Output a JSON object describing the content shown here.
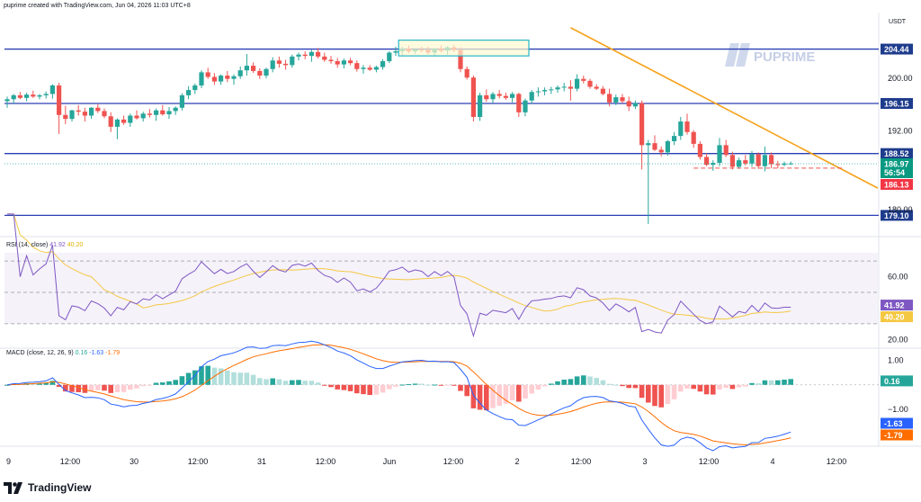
{
  "header": {
    "caption": "puprime created with TradingView.com, Jun 04, 2026 11:03 UTC+8"
  },
  "brand": {
    "name": "TradingView",
    "watermark": "PUPRIME"
  },
  "colors": {
    "up": "#26a69a",
    "down": "#ef5350",
    "level": "#2a3fb5",
    "trend": "#f7a21b",
    "rsi": "#7e57c2",
    "rsi_ma": "#f5c842",
    "macd": "#2962ff",
    "signal": "#ff6d00",
    "hist_up": "#26a69a",
    "hist_up_fade": "#b2dfdb",
    "hist_down": "#ef5350",
    "hist_down_fade": "#ffcdd2"
  },
  "chart_data": [
    {
      "type": "candlestick",
      "name": "price",
      "ylabel": "USDT",
      "ylim": [
        176,
        210
      ],
      "y_ticks": [
        180.0,
        192.0,
        200.0
      ],
      "levels": [
        204.44,
        196.15,
        188.52,
        179.1
      ],
      "level_labels": [
        "204.44",
        "196.15",
        "188.52",
        "179.10"
      ],
      "current": {
        "price": "186.97",
        "countdown": "56:54"
      },
      "bid": "186.13",
      "x_ticks": [
        "9",
        "12:00",
        "30",
        "12:00",
        "31",
        "12:00",
        "Jun",
        "12:00",
        "2",
        "12:00",
        "3",
        "12:00",
        "4",
        "12:00"
      ],
      "trendline": [
        {
          "i": 87,
          "v": 207.7
        },
        {
          "i": 126,
          "v": 187.6
        }
      ],
      "dashed_support": 186.3,
      "candles": [
        [
          196.5,
          197.2,
          195.5,
          196.8
        ],
        [
          196.8,
          197.6,
          196.1,
          197.4
        ],
        [
          197.4,
          197.9,
          196.8,
          197.0
        ],
        [
          197.0,
          197.8,
          196.5,
          197.5
        ],
        [
          197.5,
          198.1,
          197.0,
          197.2
        ],
        [
          197.2,
          197.6,
          196.8,
          197.4
        ],
        [
          197.4,
          198.0,
          196.9,
          197.6
        ],
        [
          197.6,
          199.1,
          196.9,
          198.9
        ],
        [
          198.9,
          199.3,
          191.5,
          194.4
        ],
        [
          194.4,
          195.8,
          193.0,
          193.8
        ],
        [
          193.8,
          195.2,
          193.4,
          195.1
        ],
        [
          195.1,
          195.9,
          194.3,
          194.9
        ],
        [
          194.9,
          195.5,
          193.4,
          194.3
        ],
        [
          194.3,
          195.6,
          193.8,
          195.5
        ],
        [
          195.5,
          196.0,
          194.7,
          195.0
        ],
        [
          195.0,
          195.4,
          193.9,
          194.2
        ],
        [
          194.2,
          194.8,
          191.8,
          192.6
        ],
        [
          192.6,
          193.9,
          190.7,
          193.7
        ],
        [
          193.7,
          194.3,
          192.9,
          193.2
        ],
        [
          193.2,
          194.6,
          192.6,
          194.3
        ],
        [
          194.3,
          195.1,
          193.7,
          193.9
        ],
        [
          193.9,
          194.9,
          193.4,
          194.6
        ],
        [
          194.6,
          195.3,
          194.0,
          194.4
        ],
        [
          194.4,
          195.4,
          193.5,
          195.1
        ],
        [
          195.1,
          195.9,
          194.3,
          194.5
        ],
        [
          194.5,
          195.6,
          193.8,
          195.0
        ],
        [
          195.0,
          195.7,
          194.4,
          195.5
        ],
        [
          195.5,
          197.7,
          195.1,
          197.4
        ],
        [
          197.4,
          198.8,
          196.8,
          198.2
        ],
        [
          198.2,
          199.2,
          197.6,
          198.9
        ],
        [
          198.9,
          201.2,
          198.5,
          200.9
        ],
        [
          200.9,
          201.6,
          199.9,
          200.2
        ],
        [
          200.2,
          200.8,
          199.0,
          199.5
        ],
        [
          199.5,
          200.6,
          199.0,
          200.4
        ],
        [
          200.4,
          201.1,
          199.4,
          199.9
        ],
        [
          199.9,
          200.6,
          199.0,
          200.3
        ],
        [
          200.3,
          201.8,
          199.9,
          201.2
        ],
        [
          201.2,
          203.7,
          200.4,
          201.9
        ],
        [
          201.9,
          202.4,
          200.8,
          201.1
        ],
        [
          201.1,
          201.5,
          199.9,
          200.4
        ],
        [
          200.4,
          201.6,
          200.0,
          201.4
        ],
        [
          201.4,
          203.2,
          200.9,
          202.7
        ],
        [
          202.7,
          203.3,
          201.6,
          202.2
        ],
        [
          202.2,
          202.8,
          201.3,
          202.0
        ],
        [
          202.0,
          203.6,
          201.6,
          203.3
        ],
        [
          203.3,
          203.9,
          202.7,
          203.6
        ],
        [
          203.6,
          204.1,
          202.9,
          203.4
        ],
        [
          203.4,
          204.3,
          202.5,
          204.0
        ],
        [
          204.0,
          204.6,
          203.0,
          203.3
        ],
        [
          203.3,
          203.9,
          202.5,
          202.8
        ],
        [
          202.8,
          203.4,
          202.2,
          202.6
        ],
        [
          202.6,
          203.1,
          201.6,
          202.1
        ],
        [
          202.1,
          203.0,
          201.5,
          202.7
        ],
        [
          202.7,
          203.1,
          202.0,
          202.3
        ],
        [
          202.3,
          202.7,
          201.0,
          201.4
        ],
        [
          201.4,
          202.0,
          200.7,
          201.6
        ],
        [
          201.6,
          202.0,
          201.1,
          201.3
        ],
        [
          201.3,
          201.9,
          200.9,
          201.7
        ],
        [
          201.7,
          202.9,
          201.3,
          202.6
        ],
        [
          202.6,
          204.1,
          202.3,
          203.9
        ],
        [
          203.9,
          204.8,
          203.4,
          204.1
        ],
        [
          204.1,
          204.8,
          203.5,
          204.5
        ],
        [
          204.5,
          205.0,
          203.8,
          204.1
        ],
        [
          204.1,
          204.6,
          203.7,
          204.4
        ],
        [
          204.4,
          204.8,
          203.9,
          204.3
        ],
        [
          204.3,
          204.8,
          203.6,
          203.9
        ],
        [
          203.9,
          204.6,
          203.4,
          204.5
        ],
        [
          204.5,
          205.0,
          203.9,
          204.2
        ],
        [
          204.2,
          204.9,
          203.6,
          204.7
        ],
        [
          204.7,
          205.1,
          204.0,
          204.3
        ],
        [
          204.3,
          204.7,
          200.9,
          201.4
        ],
        [
          201.4,
          201.8,
          199.8,
          200.1
        ],
        [
          200.1,
          200.4,
          193.4,
          194.1
        ],
        [
          194.1,
          197.8,
          193.5,
          197.4
        ],
        [
          197.4,
          198.3,
          196.4,
          196.8
        ],
        [
          196.8,
          197.9,
          196.2,
          197.6
        ],
        [
          197.6,
          198.2,
          196.9,
          197.3
        ],
        [
          197.3,
          197.8,
          196.7,
          197.0
        ],
        [
          197.0,
          197.9,
          196.3,
          197.6
        ],
        [
          197.6,
          197.8,
          194.1,
          194.8
        ],
        [
          194.8,
          196.9,
          194.2,
          196.6
        ],
        [
          196.6,
          198.2,
          196.1,
          197.9
        ],
        [
          197.9,
          198.6,
          197.2,
          198.0
        ],
        [
          198.0,
          198.6,
          197.4,
          198.2
        ],
        [
          198.2,
          198.7,
          197.6,
          198.3
        ],
        [
          198.3,
          198.9,
          197.8,
          198.6
        ],
        [
          198.6,
          199.3,
          198.0,
          198.7
        ],
        [
          198.7,
          199.7,
          196.6,
          198.4
        ],
        [
          198.4,
          200.6,
          198.0,
          199.9
        ],
        [
          199.9,
          200.4,
          199.2,
          199.6
        ],
        [
          199.6,
          199.9,
          198.4,
          198.7
        ],
        [
          198.7,
          199.1,
          198.2,
          198.4
        ],
        [
          198.4,
          198.8,
          197.4,
          197.6
        ],
        [
          197.6,
          198.4,
          195.7,
          196.3
        ],
        [
          196.3,
          197.5,
          195.9,
          197.1
        ],
        [
          197.1,
          197.6,
          196.2,
          196.5
        ],
        [
          196.5,
          197.2,
          195.0,
          195.7
        ],
        [
          195.7,
          196.6,
          195.3,
          196.2
        ],
        [
          196.2,
          196.6,
          186.1,
          189.8
        ],
        [
          189.8,
          190.6,
          177.8,
          190.1
        ],
        [
          190.1,
          191.3,
          188.9,
          189.1
        ],
        [
          189.1,
          189.6,
          188.1,
          188.7
        ],
        [
          188.7,
          190.6,
          188.2,
          190.4
        ],
        [
          190.4,
          191.8,
          189.8,
          191.2
        ],
        [
          191.2,
          194.1,
          190.6,
          193.4
        ],
        [
          193.4,
          194.6,
          191.4,
          191.8
        ],
        [
          191.8,
          192.1,
          189.4,
          190.0
        ],
        [
          190.0,
          190.4,
          187.6,
          188.0
        ],
        [
          188.0,
          188.6,
          186.6,
          186.8
        ],
        [
          186.8,
          187.5,
          185.9,
          187.1
        ],
        [
          187.1,
          190.9,
          186.6,
          189.8
        ],
        [
          189.8,
          190.6,
          188.0,
          188.3
        ],
        [
          188.3,
          188.8,
          186.1,
          186.5
        ],
        [
          186.5,
          187.9,
          186.2,
          187.5
        ],
        [
          187.5,
          188.3,
          186.7,
          187.0
        ],
        [
          187.0,
          188.9,
          186.5,
          188.4
        ],
        [
          188.4,
          188.7,
          186.2,
          186.6
        ],
        [
          186.6,
          189.6,
          185.8,
          188.3
        ],
        [
          188.3,
          188.7,
          186.3,
          186.9
        ],
        [
          186.9,
          187.4,
          186.3,
          186.8
        ],
        [
          186.8,
          187.3,
          186.6,
          187.0
        ],
        [
          187.0,
          187.3,
          186.8,
          187.0
        ]
      ]
    },
    {
      "type": "line",
      "name": "rsi",
      "title": "RSI (14, close)",
      "value": "41.92",
      "ma_value": "40.20",
      "ylim": [
        15,
        85
      ],
      "y_ticks": [
        20.0,
        60.0
      ],
      "bands": [
        70,
        50,
        30
      ]
    },
    {
      "type": "bar",
      "name": "macd",
      "title": "MACD (close, 12, 26, 9)",
      "hist_value": "0.16",
      "macd_value": "-1.63",
      "signal_value": "-1.79",
      "ylim": [
        -2.45,
        1.45
      ],
      "y_ticks": [
        -1.0,
        1.0
      ],
      "y_tick_labels": [
        "−1.00",
        "1.00"
      ]
    }
  ]
}
